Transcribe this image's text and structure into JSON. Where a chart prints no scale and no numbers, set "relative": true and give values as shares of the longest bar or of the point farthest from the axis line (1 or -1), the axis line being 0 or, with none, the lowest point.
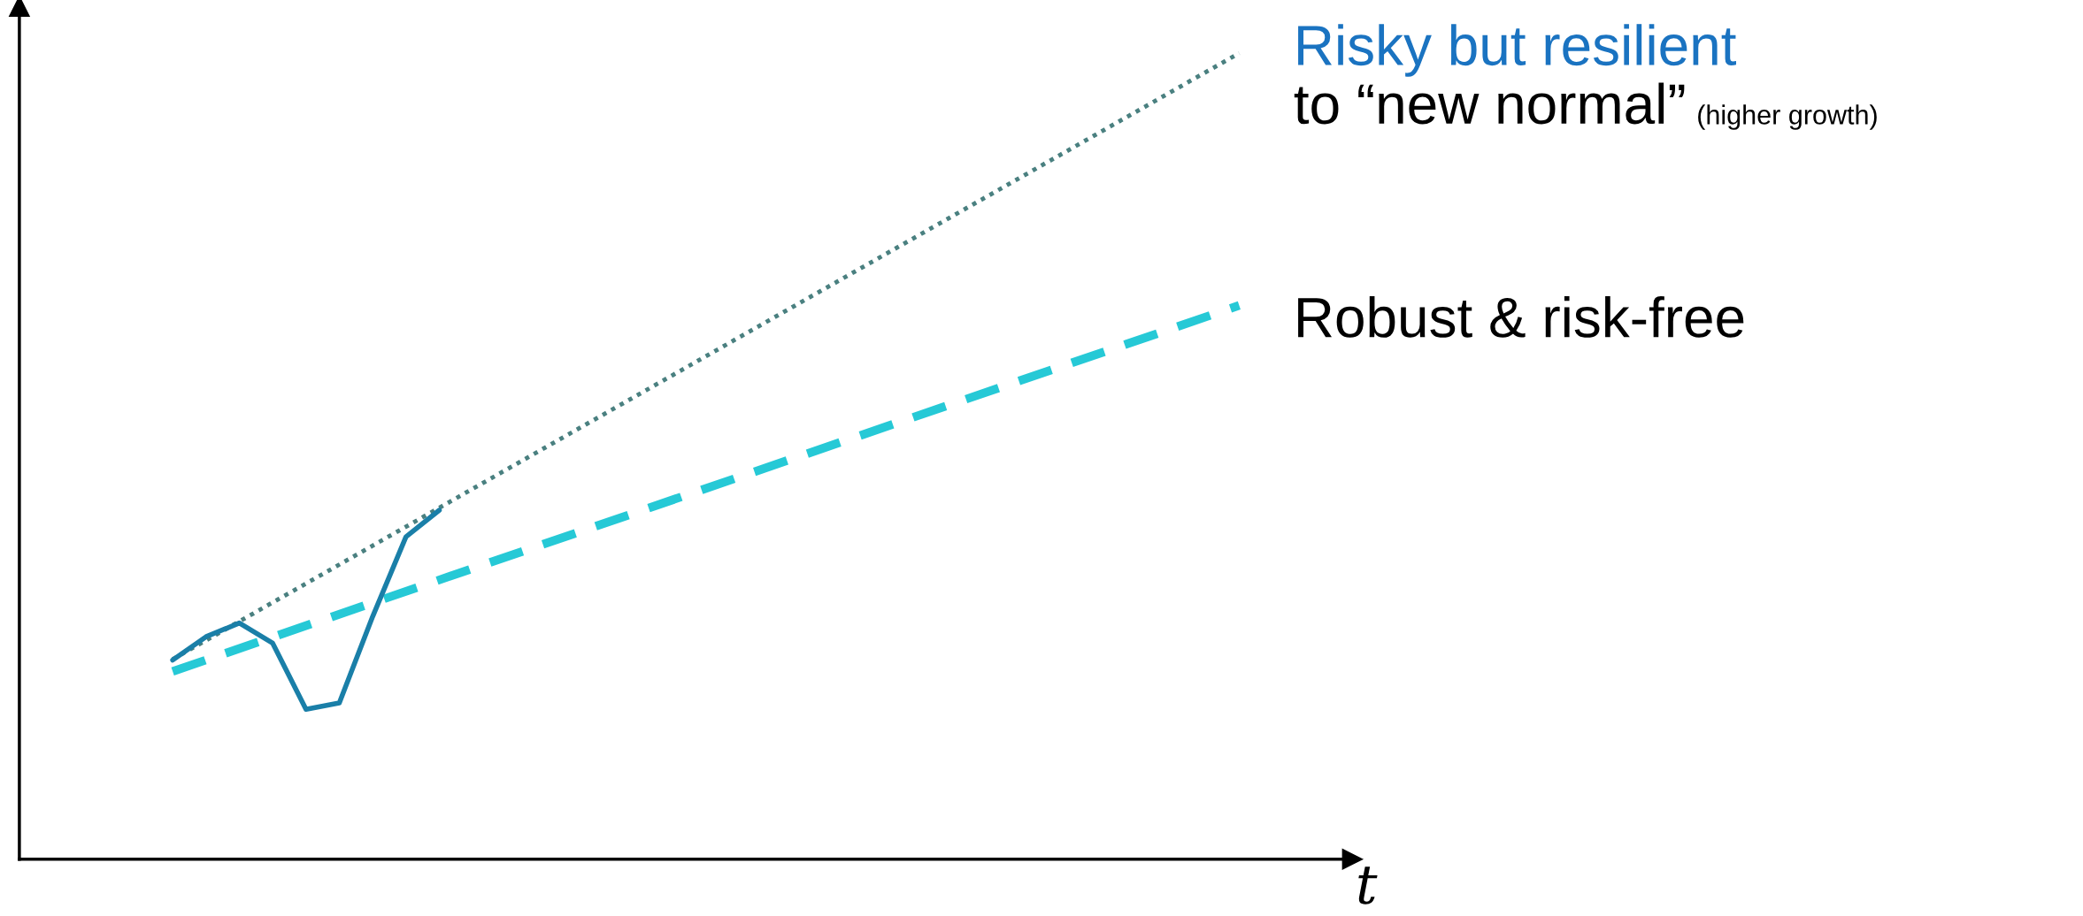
{
  "chart_data": {
    "type": "line",
    "relative": true,
    "xlabel": "t",
    "categories": [
      null,
      null,
      null,
      null,
      null,
      null,
      null,
      null,
      null,
      null,
      null,
      null,
      null,
      null,
      null,
      null,
      null,
      null,
      null,
      null,
      null,
      null,
      null,
      null,
      null,
      null,
      null,
      null,
      null,
      null,
      null,
      null,
      null
    ],
    "series": [
      {
        "color": "#4a8080",
        "line_style": "dotted",
        "values": [
          0.248,
          null,
          null,
          null,
          null,
          null,
          null,
          null,
          null,
          null,
          null,
          null,
          null,
          null,
          null,
          null,
          null,
          null,
          null,
          null,
          null,
          null,
          null,
          null,
          null,
          null,
          null,
          null,
          null,
          null,
          null,
          null,
          1.0
        ]
      },
      {
        "color": "#26c9d6",
        "line_style": "dashed",
        "values": [
          0.233,
          null,
          null,
          null,
          null,
          null,
          null,
          null,
          null,
          null,
          null,
          null,
          null,
          null,
          null,
          null,
          null,
          null,
          null,
          null,
          null,
          null,
          null,
          null,
          null,
          null,
          null,
          null,
          null,
          null,
          null,
          null,
          0.687
        ]
      },
      {
        "color": "#1a7fa8",
        "line_style": "solid",
        "values": [
          0.247,
          0.276,
          0.293,
          0.268,
          0.186,
          0.194,
          0.301,
          0.4,
          0.433,
          null,
          null,
          null,
          null,
          null,
          null,
          null,
          null,
          null,
          null,
          null,
          null,
          null,
          null,
          null,
          null,
          null,
          null,
          null,
          null,
          null,
          null,
          null,
          null
        ]
      }
    ],
    "annotations": [
      "Risky but resilient",
      "to “new normal”",
      "(higher growth)",
      "Robust & risk-free"
    ]
  }
}
